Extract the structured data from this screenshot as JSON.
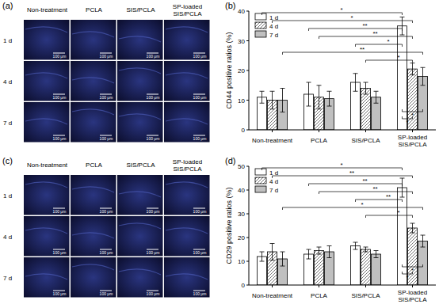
{
  "chart_data": [
    {
      "type": "bar",
      "title": "(b)",
      "y_label": "CD44 positive ratios (%)",
      "categories": [
        "Non-treatment",
        "PCLA",
        "SIS/PCLA",
        "SP-loaded SIS/PCLA"
      ],
      "series": [
        {
          "name": "1 d",
          "color": "#ffffff",
          "values": [
            11,
            12,
            16,
            35
          ],
          "errors": [
            2,
            4,
            3,
            3
          ]
        },
        {
          "name": "4 d",
          "color": "#ffffff",
          "values": [
            10,
            11,
            14,
            20.5
          ],
          "errors": [
            3,
            4,
            2,
            2
          ]
        },
        {
          "name": "7 d",
          "color": "#c0c0c0",
          "values": [
            10,
            10.5,
            11,
            18
          ],
          "errors": [
            4,
            2.5,
            2,
            3
          ]
        }
      ],
      "ylim": [
        0,
        40
      ],
      "yticks": [
        0,
        10,
        20,
        30,
        40
      ],
      "legend": "upper left",
      "annotations": [
        {
          "label": "*",
          "from": [
            0,
            0
          ],
          "to": [
            3,
            0
          ]
        },
        {
          "label": "*",
          "from": [
            0,
            1
          ],
          "to": [
            3,
            1
          ]
        },
        {
          "label": "**",
          "from": [
            1,
            0
          ],
          "to": [
            3,
            0
          ]
        },
        {
          "label": "**",
          "from": [
            1,
            1
          ],
          "to": [
            3,
            1
          ]
        },
        {
          "label": "*",
          "from": [
            2,
            0
          ],
          "to": [
            3,
            0
          ]
        },
        {
          "label": "**",
          "from": [
            0,
            2
          ],
          "to": [
            3,
            2
          ]
        },
        {
          "label": "*",
          "from": [
            2,
            1
          ],
          "to": [
            3,
            1
          ]
        },
        {
          "label": "*",
          "from": [
            3,
            0
          ],
          "to": [
            3,
            1
          ]
        },
        {
          "label": "*",
          "from": [
            3,
            0
          ],
          "to": [
            3,
            2
          ]
        }
      ]
    },
    {
      "type": "bar",
      "title": "(d)",
      "y_label": "CD29 positive ratios (%)",
      "categories": [
        "Non-treatment",
        "PCLA",
        "SIS/PCLA",
        "SP-loaded SIS/PCLA"
      ],
      "series": [
        {
          "name": "1 d",
          "color": "#ffffff",
          "values": [
            12,
            13,
            16.5,
            41
          ],
          "errors": [
            2,
            2,
            1.5,
            4
          ]
        },
        {
          "name": "4 d",
          "color": "#ffffff",
          "values": [
            14,
            14.5,
            15,
            24
          ],
          "errors": [
            3.5,
            1.5,
            1,
            2
          ]
        },
        {
          "name": "7 d",
          "color": "#c0c0c0",
          "values": [
            11,
            14,
            13,
            18.5
          ],
          "errors": [
            3,
            2.5,
            1.5,
            2.5
          ]
        }
      ],
      "ylim": [
        0,
        50
      ],
      "yticks": [
        0,
        10,
        20,
        30,
        40,
        50
      ],
      "legend": "upper left",
      "annotations": [
        {
          "label": "*",
          "from": [
            0,
            0
          ],
          "to": [
            3,
            0
          ]
        },
        {
          "label": "**",
          "from": [
            0,
            1
          ],
          "to": [
            3,
            1
          ]
        },
        {
          "label": "**",
          "from": [
            1,
            0
          ],
          "to": [
            3,
            0
          ]
        },
        {
          "label": "**",
          "from": [
            1,
            1
          ],
          "to": [
            3,
            1
          ]
        },
        {
          "label": "**",
          "from": [
            2,
            0
          ],
          "to": [
            3,
            0
          ]
        },
        {
          "label": "*",
          "from": [
            0,
            2
          ],
          "to": [
            3,
            2
          ]
        },
        {
          "label": "*",
          "from": [
            2,
            1
          ],
          "to": [
            3,
            1
          ]
        },
        {
          "label": "*",
          "from": [
            3,
            0
          ],
          "to": [
            3,
            1
          ]
        },
        {
          "label": "*",
          "from": [
            3,
            0
          ],
          "to": [
            3,
            2
          ]
        }
      ]
    }
  ],
  "image_panels": [
    {
      "label": "(a)",
      "columns": [
        "Non-treatment",
        "PCLA",
        "SIS/PCLA",
        "SP-loaded SIS/PCLA"
      ],
      "rows": [
        "1 d",
        "4 d",
        "7 d"
      ],
      "scale_bar": "100 μm"
    },
    {
      "label": "(c)",
      "columns": [
        "Non-treatment",
        "PCLA",
        "SIS/PCLA",
        "SP-loaded SIS/PCLA"
      ],
      "rows": [
        "1 d",
        "4 d",
        "7 d"
      ],
      "scale_bar": "100 μm"
    }
  ]
}
